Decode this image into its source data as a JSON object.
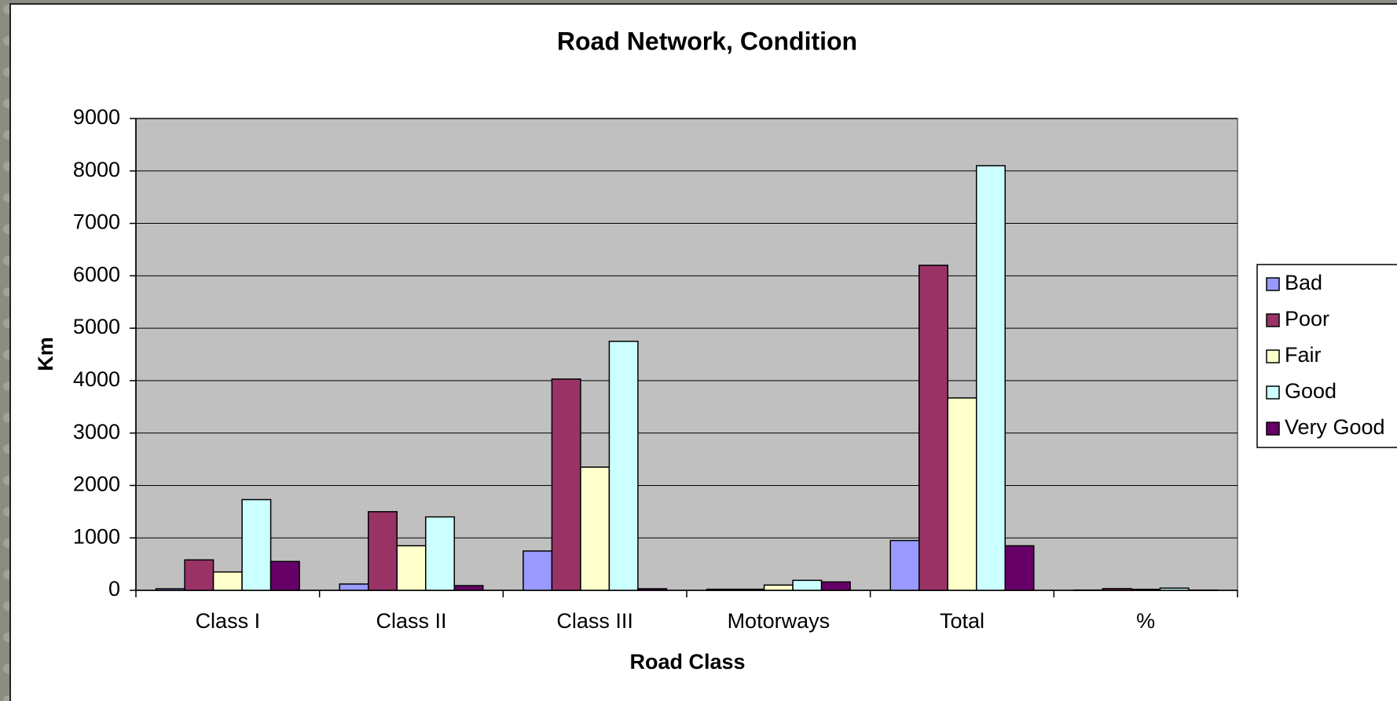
{
  "chart_data": {
    "type": "bar",
    "title": "Road Network, Condition",
    "x_label": "Road Class",
    "y_label": "Km",
    "categories": [
      "Class I",
      "Class II",
      "Class III",
      "Motorways",
      "Total",
      "%"
    ],
    "series": [
      {
        "name": "Bad",
        "color": "#9999ff",
        "values": [
          30,
          120,
          750,
          20,
          950,
          5
        ]
      },
      {
        "name": "Poor",
        "color": "#993366",
        "values": [
          580,
          1500,
          4030,
          20,
          6200,
          32
        ]
      },
      {
        "name": "Fair",
        "color": "#ffffcc",
        "values": [
          350,
          850,
          2350,
          100,
          3670,
          19
        ]
      },
      {
        "name": "Good",
        "color": "#ccffff",
        "values": [
          1730,
          1400,
          4750,
          190,
          8100,
          42
        ]
      },
      {
        "name": "Very Good",
        "color": "#660066",
        "values": [
          550,
          90,
          30,
          160,
          850,
          4
        ]
      }
    ],
    "ylim": [
      0,
      9000
    ],
    "yticks": [
      0,
      1000,
      2000,
      3000,
      4000,
      5000,
      6000,
      7000,
      8000,
      9000
    ],
    "grid": true,
    "legend": "right"
  }
}
